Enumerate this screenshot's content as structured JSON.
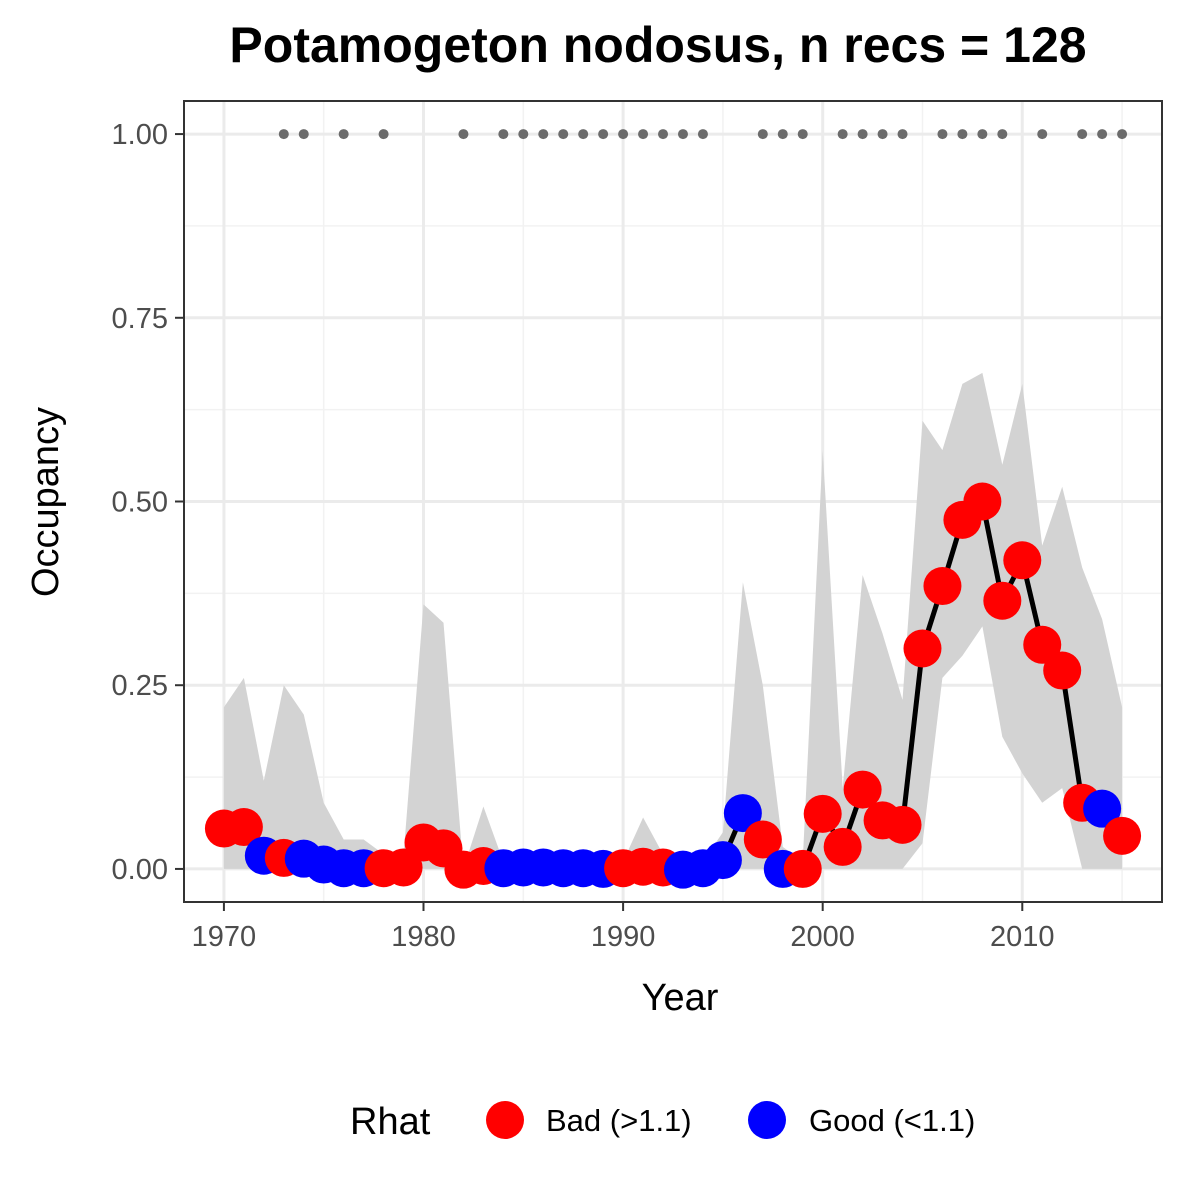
{
  "chart_data": {
    "type": "line",
    "title": "Potamogeton nodosus, n recs = 128",
    "xlabel": "Year",
    "ylabel": "Occupancy",
    "xlim": [
      1968,
      2017
    ],
    "ylim": [
      -0.045,
      1.045
    ],
    "x_ticks": [
      "1970",
      "1980",
      "1990",
      "2000",
      "2010"
    ],
    "y_ticks": [
      "0.00",
      "0.25",
      "0.50",
      "0.75",
      "1.00"
    ],
    "grid": true,
    "legend_position": "bottom",
    "legend": {
      "title": "Rhat",
      "entries": [
        {
          "label": "Bad (>1.1)",
          "color": "#ff0000"
        },
        {
          "label": "Good (<1.1)",
          "color": "#0000ff"
        }
      ]
    },
    "colors": {
      "bad": "#ff0000",
      "good": "#0000ff",
      "line": "#000000",
      "ribbon": "#d3d3d3",
      "records": "#6b6b6b"
    },
    "series": [
      {
        "years": [
          1970,
          1971,
          1972,
          1973,
          1974,
          1975,
          1976,
          1977,
          1978,
          1979,
          1980,
          1981,
          1982,
          1983,
          1984,
          1985,
          1986,
          1987,
          1988,
          1989,
          1990,
          1991,
          1992,
          1993,
          1994,
          1995,
          1996,
          1997,
          1998,
          1999,
          2000,
          2001,
          2002,
          2003,
          2004,
          2005,
          2006,
          2007,
          2008,
          2009,
          2010,
          2011,
          2012,
          2013,
          2014,
          2015
        ],
        "occupancy": [
          0.055,
          0.057,
          0.018,
          0.015,
          0.014,
          0.006,
          0.001,
          0.001,
          0.001,
          0.002,
          0.036,
          0.028,
          -0.001,
          0.004,
          0.001,
          0.002,
          0.002,
          0.001,
          0.001,
          0.0,
          0.001,
          0.003,
          0.002,
          -0.001,
          0.001,
          0.012,
          0.076,
          0.04,
          0.0,
          0.0,
          0.075,
          0.03,
          0.108,
          0.066,
          0.06,
          0.3,
          0.385,
          0.475,
          0.5,
          0.365,
          0.42,
          0.305,
          0.27,
          0.09,
          0.082,
          0.045
        ],
        "lower": [
          0.0,
          0.0,
          0.0,
          0.0,
          0.0,
          0.0,
          0.0,
          0.0,
          0.0,
          0.0,
          0.0,
          0.0,
          0.0,
          0.0,
          0.0,
          0.0,
          0.0,
          0.0,
          0.0,
          0.0,
          0.0,
          0.0,
          0.0,
          0.0,
          0.0,
          0.0,
          0.0,
          0.0,
          0.0,
          0.0,
          0.0,
          0.0,
          0.0,
          0.0,
          0.0,
          0.035,
          0.26,
          0.29,
          0.33,
          0.18,
          0.13,
          0.09,
          0.11,
          0.0,
          0.0,
          0.0
        ],
        "upper": [
          0.22,
          0.26,
          0.12,
          0.25,
          0.21,
          0.09,
          0.04,
          0.04,
          0.02,
          0.02,
          0.36,
          0.335,
          0.0,
          0.085,
          0.01,
          0.01,
          0.01,
          0.01,
          0.01,
          0.01,
          0.01,
          0.07,
          0.02,
          0.01,
          0.01,
          0.05,
          0.39,
          0.25,
          0.03,
          0.01,
          0.57,
          0.11,
          0.4,
          0.32,
          0.23,
          0.61,
          0.57,
          0.66,
          0.675,
          0.55,
          0.66,
          0.44,
          0.52,
          0.41,
          0.34,
          0.22
        ],
        "rhat": [
          "bad",
          "bad",
          "good",
          "bad",
          "good",
          "good",
          "good",
          "good",
          "bad",
          "bad",
          "bad",
          "bad",
          "bad",
          "bad",
          "good",
          "good",
          "good",
          "good",
          "good",
          "good",
          "bad",
          "bad",
          "bad",
          "good",
          "good",
          "good",
          "good",
          "bad",
          "good",
          "bad",
          "bad",
          "bad",
          "bad",
          "bad",
          "bad",
          "bad",
          "bad",
          "bad",
          "bad",
          "bad",
          "bad",
          "bad",
          "bad",
          "bad",
          "good",
          "bad"
        ]
      }
    ],
    "record_years": [
      1973,
      1974,
      1976,
      1978,
      1982,
      1984,
      1985,
      1986,
      1987,
      1988,
      1989,
      1990,
      1991,
      1992,
      1993,
      1994,
      1997,
      1998,
      1999,
      2001,
      2002,
      2003,
      2004,
      2006,
      2007,
      2008,
      2009,
      2011,
      2013,
      2014,
      2015
    ],
    "record_value": 1.0
  }
}
